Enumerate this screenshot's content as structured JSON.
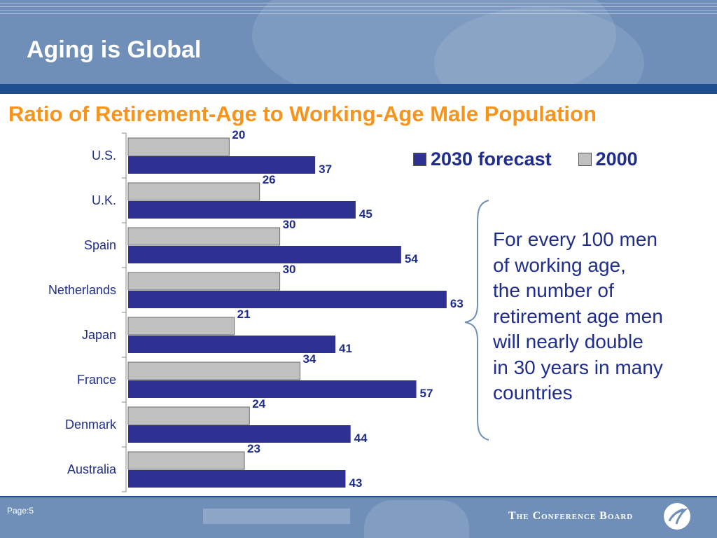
{
  "slide": {
    "title": "Aging is Global",
    "page": "Page:5"
  },
  "brand": {
    "name": "The Conference Board"
  },
  "legend": {
    "forecast_label": "2030 forecast",
    "base_label": "2000"
  },
  "note": {
    "lines": [
      "For every 100 men",
      "of working age,",
      "the number of",
      "retirement age men",
      "will nearly double",
      "in 30 years in many",
      "countries"
    ]
  },
  "colors": {
    "forecast": "#2e3192",
    "base": "#c0c0c0",
    "title": "#f7941d",
    "text": "#1f2d8c",
    "header": "#6f8fb9"
  },
  "chart_data": {
    "type": "bar",
    "orientation": "horizontal",
    "title": "Ratio of Retirement-Age to Working-Age Male Population",
    "categories": [
      "U.S.",
      "U.K.",
      "Spain",
      "Netherlands",
      "Japan",
      "France",
      "Denmark",
      "Australia"
    ],
    "series": [
      {
        "name": "2000",
        "values": [
          20,
          26,
          30,
          30,
          21,
          34,
          24,
          23
        ]
      },
      {
        "name": "2030 forecast",
        "values": [
          37,
          45,
          54,
          63,
          41,
          57,
          44,
          43
        ]
      }
    ],
    "xlim": [
      0,
      65
    ],
    "grid": false,
    "legend_position": "top-right",
    "data_labels": true
  }
}
